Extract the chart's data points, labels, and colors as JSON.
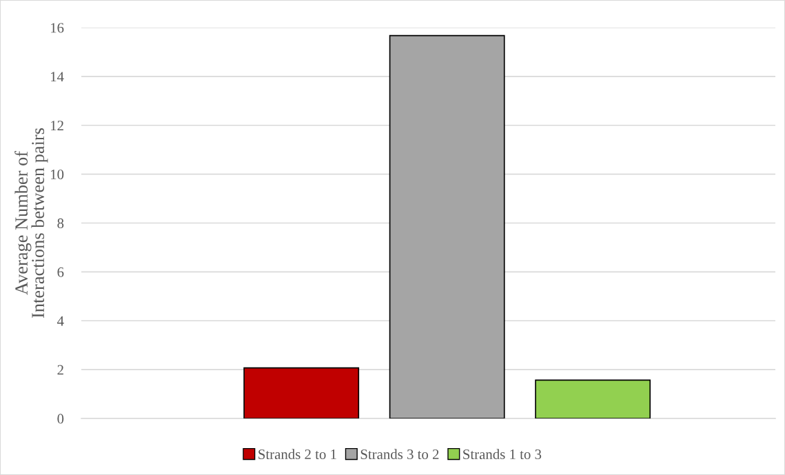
{
  "chart_data": {
    "type": "bar",
    "ylabel": "Average Number of\nInteractions between pairs",
    "categories": [
      null
    ],
    "series": [
      {
        "name": "Strands 2 to 1",
        "color": "#c00000",
        "values": [
          2.07
        ]
      },
      {
        "name": "Strands 3 to 2",
        "color": "#a5a5a5",
        "values": [
          15.67
        ]
      },
      {
        "name": "Strands 1 to 3",
        "color": "#92d050",
        "values": [
          1.57
        ]
      }
    ],
    "ylim": [
      0,
      16
    ],
    "yticks": [
      0,
      2,
      4,
      6,
      8,
      10,
      12,
      14,
      16
    ],
    "grid": "y",
    "legend": "bottom"
  }
}
